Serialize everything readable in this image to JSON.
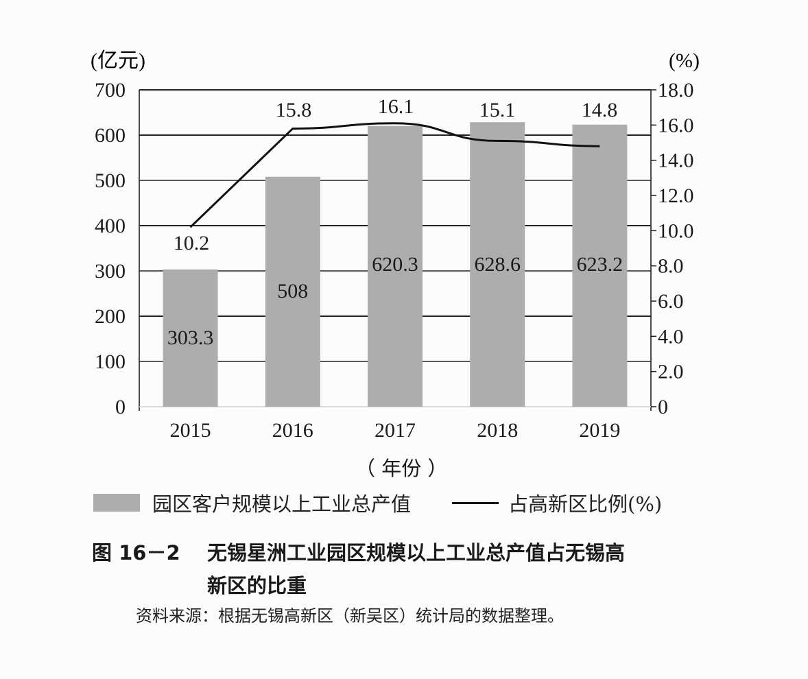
{
  "chart_data": {
    "type": "bar+line",
    "title": "图 16－2　无锡星洲工业园区规模以上工业总产值占无锡高新区的比重",
    "categories": [
      "2015",
      "2016",
      "2017",
      "2018",
      "2019"
    ],
    "series": [
      {
        "name": "园区客户规模以上工业总产值",
        "type": "bar",
        "axis": "left",
        "values": [
          303.3,
          508,
          620.3,
          628.6,
          623.2
        ],
        "color": "#adadad"
      },
      {
        "name": "占高新区比例(%)",
        "type": "line",
        "axis": "right",
        "values": [
          10.2,
          15.8,
          16.1,
          15.1,
          14.8
        ],
        "color": "#111111"
      }
    ],
    "xlabel": "（年份）",
    "ylabel_left": "(亿元)",
    "ylabel_right": "(%)",
    "ylim_left": [
      0,
      700
    ],
    "ylim_right": [
      0,
      18
    ],
    "yticks_left": [
      "0",
      "100",
      "200",
      "300",
      "400",
      "500",
      "600",
      "700"
    ],
    "yticks_right": [
      "0",
      "2.0",
      "4.0",
      "6.0",
      "8.0",
      "10.0",
      "12.0",
      "14.0",
      "16.0",
      "18.0"
    ],
    "grid": true,
    "legend_position": "bottom"
  },
  "labels": {
    "unit_left": "(亿元)",
    "unit_right": "(%)",
    "xlabel": "（ 年份 ）",
    "bar_labels": [
      "303.3",
      "508",
      "620.3",
      "628.6",
      "623.2"
    ],
    "line_labels": [
      "10.2",
      "15.8",
      "16.1",
      "15.1",
      "14.8"
    ],
    "legend_bar": "园区客户规模以上工业总产值",
    "legend_line": "占高新区比例(%)",
    "fig_num": "图 16－2",
    "title_line1": "无锡星洲工业园区规模以上工业总产值占无锡高",
    "title_line2": "新区的比重",
    "source": "资料来源：根据无锡高新区（新吴区）统计局的数据整理。"
  }
}
